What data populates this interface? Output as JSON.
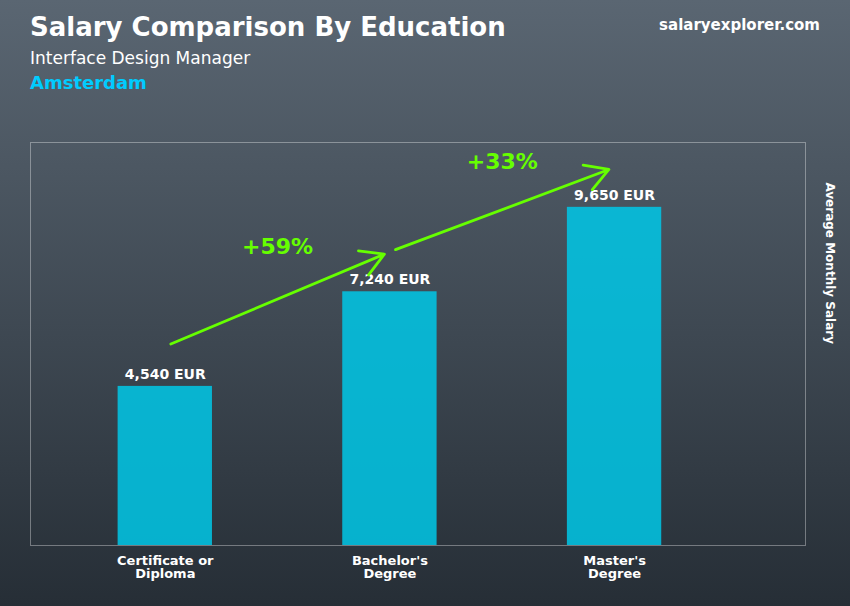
{
  "chart_data": {
    "type": "bar",
    "title": "Salary Comparison By Education",
    "subtitle": "Interface Design Manager",
    "ylabel": "Average Monthly Salary",
    "categories": [
      "Certificate or\nDiploma",
      "Bachelor's\nDegree",
      "Master's\nDegree"
    ],
    "values": [
      4540,
      7240,
      9650
    ],
    "value_labels": [
      "4,540 EUR",
      "7,240 EUR",
      "9,650 EUR"
    ],
    "data_labels": true,
    "color": "#00c8e8",
    "ylim": [
      0,
      11500
    ],
    "tick_labels": "x",
    "grid": false,
    "annotations": [
      {
        "text": "Amsterdam",
        "color": "#00ccff"
      },
      {
        "text": "salaryexplorer.com"
      },
      {
        "text": "+59%",
        "from": "Certificate or\nDiploma",
        "to": "Bachelor's\nDegree",
        "color": "#66ff00"
      },
      {
        "text": "+33%",
        "from": "Bachelor's\nDegree",
        "to": "Master's\nDegree",
        "color": "#66ff00"
      }
    ]
  }
}
